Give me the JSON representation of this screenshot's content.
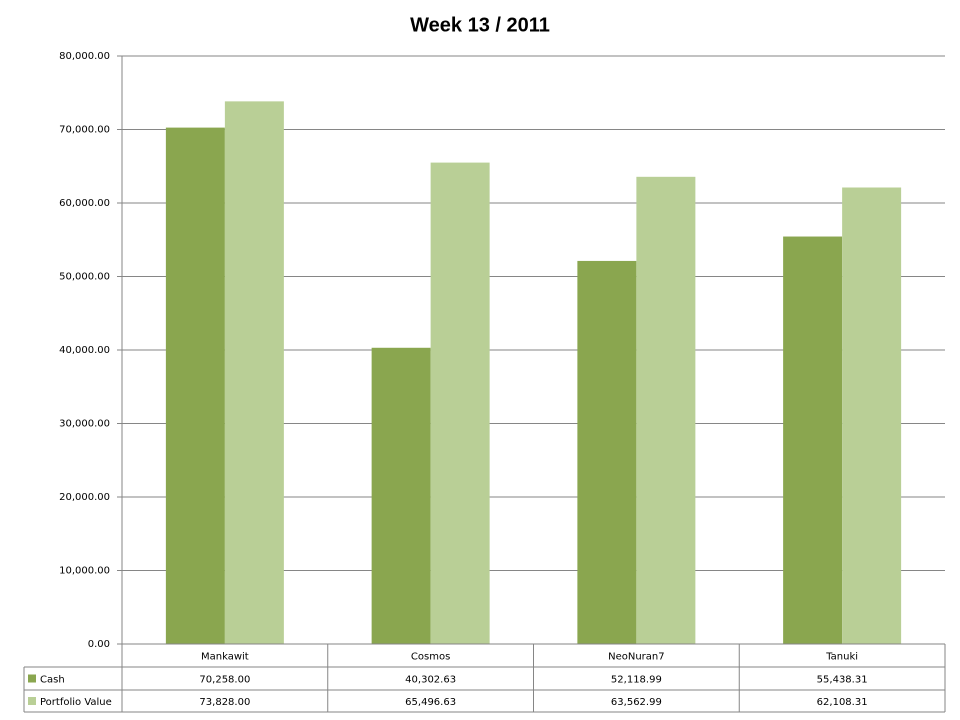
{
  "chart_data": {
    "type": "bar",
    "title": "Week 13 / 2011",
    "categories": [
      "Mankawit",
      "Cosmos",
      "NeoNuran7",
      "Tanuki"
    ],
    "series": [
      {
        "name": "Cash",
        "color": "#8aa64f",
        "values": [
          70258.0,
          40302.63,
          52118.99,
          55438.31
        ],
        "value_labels": [
          "70,258.00",
          "40,302.63",
          "52,118.99",
          "55,438.31"
        ]
      },
      {
        "name": "Portfolio Value",
        "color": "#b9cf96",
        "values": [
          73828.0,
          65496.63,
          63562.99,
          62108.31
        ],
        "value_labels": [
          "73,828.00",
          "65,496.63",
          "63,562.99",
          "62,108.31"
        ]
      }
    ],
    "ylim": [
      0,
      80000
    ],
    "yticks": [
      {
        "value": 0,
        "label": "0.00"
      },
      {
        "value": 10000,
        "label": "10,000.00"
      },
      {
        "value": 20000,
        "label": "20,000.00"
      },
      {
        "value": 30000,
        "label": "30,000.00"
      },
      {
        "value": 40000,
        "label": "40,000.00"
      },
      {
        "value": 50000,
        "label": "50,000.00"
      },
      {
        "value": 60000,
        "label": "60,000.00"
      },
      {
        "value": 70000,
        "label": "70,000.00"
      },
      {
        "value": 80000,
        "label": "80,000.00"
      }
    ],
    "grid": true
  }
}
